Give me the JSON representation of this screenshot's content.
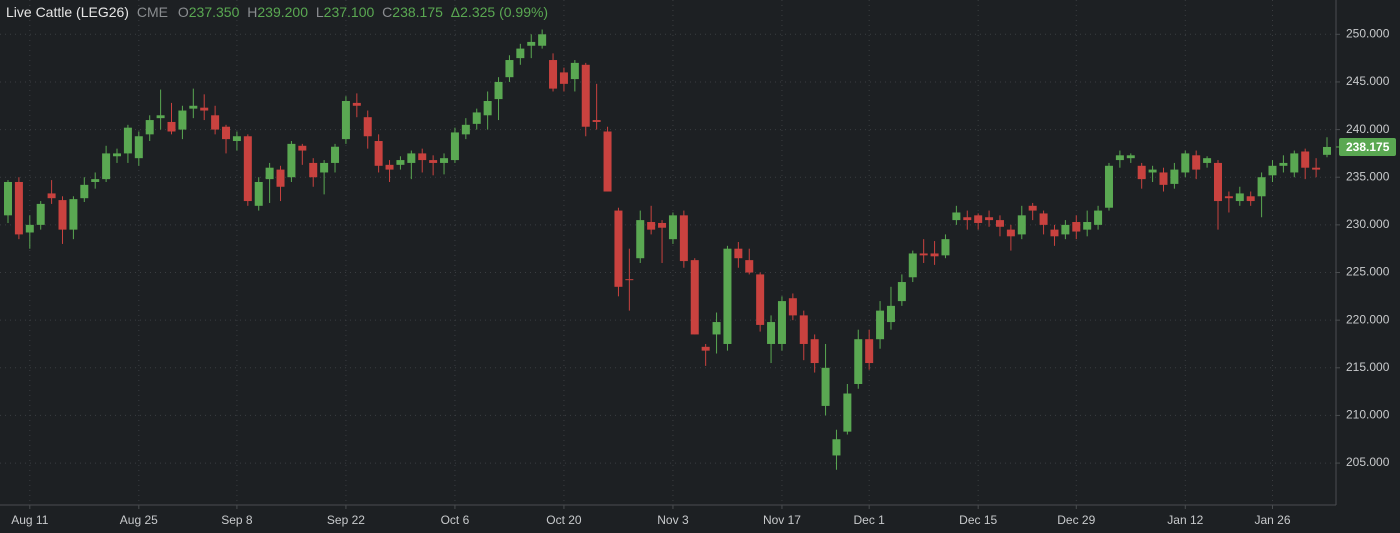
{
  "chart_data": {
    "type": "candlestick",
    "header": {
      "symbol": "Live Cattle (LEG26)",
      "exchange": "CME",
      "open_key": "O",
      "open": "237.350",
      "high_key": "H",
      "high": "239.200",
      "low_key": "L",
      "low": "237.100",
      "close_key": "C",
      "close": "238.175",
      "change": "Δ2.325 (0.99%)"
    },
    "up_color": "#5aa852",
    "down_color": "#c9423f",
    "ylim": [
      200.6,
      253.6
    ],
    "yticks": [
      {
        "value": 205,
        "label": "205.000"
      },
      {
        "value": 210,
        "label": "210.000"
      },
      {
        "value": 215,
        "label": "215.000"
      },
      {
        "value": 220,
        "label": "220.000"
      },
      {
        "value": 225,
        "label": "225.000"
      },
      {
        "value": 230,
        "label": "230.000"
      },
      {
        "value": 235,
        "label": "235.000"
      },
      {
        "value": 240,
        "label": "240.000"
      },
      {
        "value": 245,
        "label": "245.000"
      },
      {
        "value": 250,
        "label": "250.000"
      }
    ],
    "last_price": {
      "value": 238.175,
      "label": "238.175"
    },
    "grid": true,
    "categories": [
      null,
      null,
      "Aug 11",
      null,
      null,
      null,
      null,
      null,
      null,
      null,
      null,
      null,
      "Aug 25",
      null,
      null,
      null,
      null,
      null,
      null,
      null,
      null,
      "Sep 8",
      null,
      null,
      null,
      null,
      null,
      null,
      null,
      null,
      null,
      "Sep 22",
      null,
      null,
      null,
      null,
      null,
      null,
      null,
      null,
      null,
      "Oct 6",
      null,
      null,
      null,
      null,
      null,
      null,
      null,
      null,
      null,
      "Oct 20",
      null,
      null,
      null,
      null,
      null,
      null,
      null,
      null,
      null,
      "Nov 3",
      null,
      null,
      null,
      null,
      null,
      null,
      null,
      null,
      null,
      "Nov 17",
      null,
      null,
      null,
      null,
      null,
      null,
      null,
      "Dec 1",
      null,
      null,
      null,
      null,
      null,
      null,
      null,
      null,
      null,
      "Dec 15",
      null,
      null,
      null,
      null,
      null,
      null,
      null,
      null,
      "Dec 29",
      null,
      null,
      null,
      null,
      null,
      null,
      null,
      null,
      null,
      "Jan 12",
      null,
      null,
      null,
      null,
      null,
      null,
      null,
      "Jan 26",
      null,
      null,
      null,
      null,
      null
    ],
    "open": [
      231.0,
      234.5,
      229.2,
      230.0,
      233.3,
      232.6,
      229.5,
      232.8,
      234.5,
      234.8,
      237.2,
      237.5,
      237.0,
      239.5,
      241.2,
      240.8,
      240.0,
      242.2,
      242.3,
      241.5,
      240.3,
      238.8,
      239.3,
      232.0,
      234.8,
      235.8,
      235.0,
      238.3,
      236.5,
      235.5,
      236.5,
      239.0,
      242.8,
      241.3,
      238.8,
      236.3,
      236.3,
      236.5,
      237.5,
      236.8,
      236.5,
      236.8,
      239.5,
      240.6,
      241.5,
      243.2,
      245.5,
      247.5,
      248.8,
      248.8,
      247.3,
      246.0,
      245.3,
      246.8,
      241.0,
      239.8,
      231.5,
      224.3,
      226.5,
      230.3,
      230.2,
      228.5,
      231.0,
      226.3,
      217.2,
      218.5,
      217.5,
      227.5,
      226.3,
      224.8,
      217.5,
      217.5,
      222.3,
      220.5,
      218.0,
      211.0,
      205.8,
      208.3,
      213.3,
      218.0,
      218.0,
      219.8,
      222.0,
      224.5,
      227.0,
      227.0,
      226.8,
      230.5,
      230.8,
      231.0,
      230.8,
      230.5,
      229.5,
      229.0,
      232.0,
      231.2,
      229.5,
      229.0,
      230.3,
      229.5,
      230.0,
      231.8,
      236.8,
      237.0,
      236.2,
      235.5,
      235.5,
      234.3,
      235.5,
      237.3,
      236.5,
      236.5,
      233.0,
      232.5,
      233.0,
      233.0,
      235.2,
      236.2,
      235.5,
      237.7,
      236.0,
      237.35
    ],
    "high": [
      234.7,
      235.0,
      231.0,
      232.5,
      234.7,
      233.0,
      233.0,
      235.0,
      235.5,
      238.3,
      238.0,
      240.5,
      239.8,
      241.5,
      244.2,
      242.8,
      242.5,
      244.3,
      243.7,
      242.5,
      240.5,
      239.8,
      239.5,
      235.0,
      236.5,
      236.2,
      238.8,
      238.5,
      237.0,
      236.8,
      238.5,
      243.5,
      243.8,
      242.0,
      239.5,
      236.8,
      237.2,
      237.8,
      238.0,
      237.3,
      237.5,
      240.2,
      241.2,
      242.2,
      244.0,
      245.5,
      247.8,
      249.0,
      250.0,
      250.5,
      248.0,
      246.5,
      247.3,
      247.0,
      244.8,
      240.3,
      231.8,
      227.5,
      231.5,
      232.0,
      230.5,
      231.3,
      231.5,
      226.5,
      217.5,
      220.8,
      227.8,
      228.2,
      227.5,
      225.0,
      220.5,
      222.5,
      222.8,
      221.0,
      218.5,
      217.5,
      208.5,
      213.3,
      219.0,
      219.0,
      222.0,
      223.5,
      224.8,
      227.3,
      228.5,
      228.3,
      229.0,
      232.0,
      231.5,
      231.2,
      231.5,
      231.0,
      230.0,
      232.0,
      232.3,
      231.5,
      230.0,
      230.5,
      231.0,
      231.5,
      232.0,
      236.5,
      237.8,
      237.5,
      236.5,
      236.2,
      236.0,
      236.5,
      237.8,
      237.8,
      237.2,
      236.8,
      233.5,
      234.0,
      233.5,
      235.5,
      236.8,
      237.3,
      237.8,
      238.0,
      237.0,
      239.2
    ],
    "low": [
      230.2,
      228.5,
      227.5,
      229.5,
      232.2,
      228.0,
      228.5,
      232.4,
      233.8,
      234.5,
      236.5,
      236.5,
      236.2,
      238.8,
      240.0,
      239.5,
      239.0,
      241.2,
      241.0,
      239.5,
      237.5,
      237.8,
      232.0,
      231.5,
      232.3,
      232.5,
      234.5,
      236.3,
      234.0,
      233.2,
      235.5,
      238.5,
      241.3,
      238.0,
      235.5,
      234.5,
      235.8,
      234.8,
      235.5,
      235.2,
      235.3,
      236.5,
      239.0,
      240.0,
      240.0,
      241.0,
      245.0,
      246.8,
      247.5,
      248.5,
      244.0,
      244.0,
      244.0,
      239.3,
      240.0,
      233.5,
      222.5,
      221.0,
      226.0,
      229.0,
      226.0,
      228.0,
      225.5,
      218.5,
      215.2,
      216.5,
      216.8,
      225.5,
      224.8,
      218.8,
      215.5,
      216.8,
      220.0,
      215.8,
      214.5,
      210.0,
      204.3,
      208.0,
      212.8,
      214.8,
      217.0,
      219.0,
      221.5,
      224.0,
      226.0,
      225.8,
      226.5,
      230.0,
      229.5,
      229.5,
      229.8,
      228.8,
      227.3,
      228.5,
      230.5,
      229.0,
      227.8,
      228.5,
      228.5,
      228.8,
      229.5,
      231.5,
      236.0,
      236.5,
      233.8,
      234.5,
      233.5,
      233.8,
      235.0,
      234.8,
      236.0,
      229.5,
      231.3,
      232.0,
      232.0,
      230.8,
      234.5,
      235.5,
      235.0,
      234.8,
      235.0,
      237.1
    ],
    "close": [
      234.5,
      229.0,
      230.0,
      232.2,
      232.8,
      229.5,
      232.7,
      234.2,
      234.8,
      237.5,
      237.5,
      240.2,
      239.3,
      241.0,
      241.5,
      239.8,
      242.0,
      242.5,
      242.0,
      240.0,
      239.0,
      239.3,
      232.5,
      234.5,
      236.0,
      234.0,
      238.5,
      237.8,
      235.0,
      236.5,
      238.2,
      243.0,
      242.5,
      239.3,
      236.2,
      235.8,
      236.8,
      237.5,
      236.8,
      236.5,
      237.0,
      239.7,
      240.5,
      241.8,
      243.0,
      245.0,
      247.3,
      248.5,
      249.2,
      250.0,
      244.3,
      244.8,
      247.0,
      240.3,
      240.8,
      233.5,
      223.5,
      224.2,
      230.5,
      229.5,
      229.7,
      231.0,
      226.2,
      218.5,
      216.8,
      219.8,
      227.5,
      226.5,
      225.0,
      219.5,
      219.8,
      222.0,
      220.5,
      217.5,
      215.5,
      215.0,
      207.5,
      212.3,
      218.0,
      215.5,
      221.0,
      221.5,
      224.0,
      227.0,
      226.8,
      226.7,
      228.5,
      231.3,
      230.5,
      230.2,
      230.5,
      229.8,
      228.8,
      231.0,
      231.5,
      230.0,
      228.8,
      230.0,
      229.3,
      230.3,
      231.5,
      236.2,
      237.3,
      237.3,
      234.8,
      235.8,
      234.2,
      235.8,
      237.5,
      235.8,
      237.0,
      232.5,
      232.8,
      233.3,
      232.5,
      235.0,
      236.2,
      236.5,
      237.5,
      236.0,
      235.8,
      238.175
    ]
  }
}
